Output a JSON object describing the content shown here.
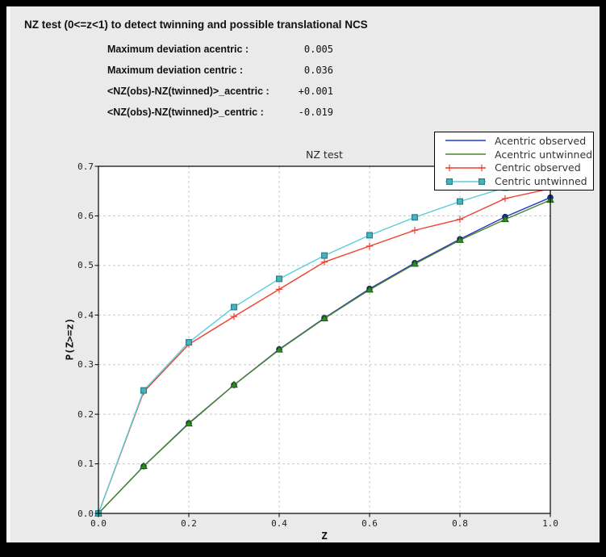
{
  "header": {
    "title": "NZ test (0<=z<1) to detect twinning and possible translational NCS"
  },
  "stats": [
    {
      "label": "Maximum deviation acentric :",
      "value": "0.005"
    },
    {
      "label": "Maximum deviation centric :",
      "value": "0.036"
    },
    {
      "label": "<NZ(obs)-NZ(twinned)>_acentric :",
      "value": "+0.001"
    },
    {
      "label": "<NZ(obs)-NZ(twinned)>_centric :",
      "value": "-0.019"
    }
  ],
  "chart_data": {
    "type": "line",
    "title": "NZ test",
    "xlabel": "Z",
    "ylabel": "P(Z>=z)",
    "xlim": [
      0.0,
      1.0
    ],
    "ylim": [
      0.0,
      0.7
    ],
    "xticks": [
      "0.0",
      "0.2",
      "0.4",
      "0.6",
      "0.8",
      "1.0"
    ],
    "yticks": [
      "0.0",
      "0.1",
      "0.2",
      "0.3",
      "0.4",
      "0.5",
      "0.6",
      "0.7"
    ],
    "grid": true,
    "legend_position": "upper right",
    "x": [
      0.0,
      0.1,
      0.2,
      0.3,
      0.4,
      0.5,
      0.6,
      0.7,
      0.8,
      0.9,
      1.0
    ],
    "series": [
      {
        "name": "Acentric observed",
        "color": "#2438c8",
        "marker": "circle",
        "marker_fill": "#16289b",
        "marker_edge": "#0e1c70",
        "legend_end_markers": false,
        "values": [
          0.0,
          0.095,
          0.182,
          0.259,
          0.331,
          0.394,
          0.453,
          0.505,
          0.553,
          0.598,
          0.637
        ]
      },
      {
        "name": "Acentric untwinned",
        "color": "#4a8328",
        "marker": "triangle",
        "marker_fill": "#2e8f21",
        "marker_edge": "#1b5a10",
        "legend_end_markers": false,
        "values": [
          0.0,
          0.095,
          0.181,
          0.259,
          0.33,
          0.393,
          0.451,
          0.503,
          0.551,
          0.593,
          0.632
        ]
      },
      {
        "name": "Centric observed",
        "color": "#ee4130",
        "marker": "plus",
        "marker_fill": "#ee4130",
        "marker_edge": "#ee4130",
        "legend_end_markers": true,
        "values": [
          0.0,
          0.245,
          0.341,
          0.397,
          0.452,
          0.507,
          0.539,
          0.571,
          0.593,
          0.635,
          0.655
        ]
      },
      {
        "name": "Centric untwinned",
        "color": "#58cdd9",
        "marker": "square",
        "marker_fill": "#48b2c0",
        "marker_edge": "#26828e",
        "legend_end_markers": true,
        "values": [
          0.0,
          0.248,
          0.345,
          0.416,
          0.473,
          0.52,
          0.561,
          0.597,
          0.629,
          0.657,
          0.683
        ]
      }
    ],
    "colors": {
      "plot_background": "#ffffff",
      "figure_background": "#eaeaea",
      "grid": "#c9c9c9",
      "spine": "#000000"
    }
  }
}
